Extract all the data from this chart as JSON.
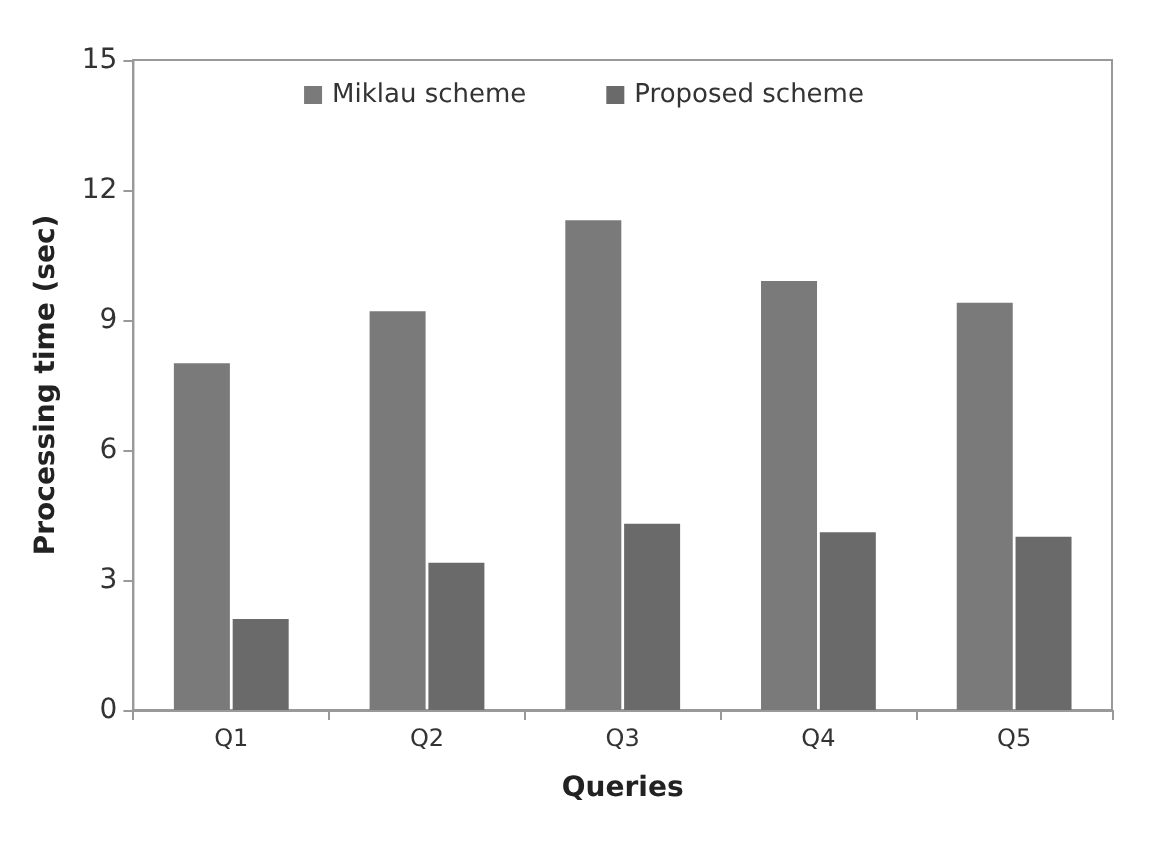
{
  "chart_data": {
    "type": "bar",
    "xlabel": "Queries",
    "ylabel": "Processing time (sec)",
    "categories": [
      "Q1",
      "Q2",
      "Q3",
      "Q4",
      "Q5"
    ],
    "series": [
      {
        "name": "Miklau scheme",
        "color": "#7a7a7a",
        "values": [
          8.0,
          9.2,
          11.3,
          9.9,
          9.4
        ]
      },
      {
        "name": "Proposed scheme",
        "color": "#6a6a6a",
        "values": [
          2.1,
          3.4,
          4.3,
          4.1,
          4.0
        ]
      }
    ],
    "ylim": [
      0,
      15
    ],
    "yticks": [
      0,
      3,
      6,
      9,
      12,
      15
    ],
    "grid": false,
    "legend": "top"
  }
}
